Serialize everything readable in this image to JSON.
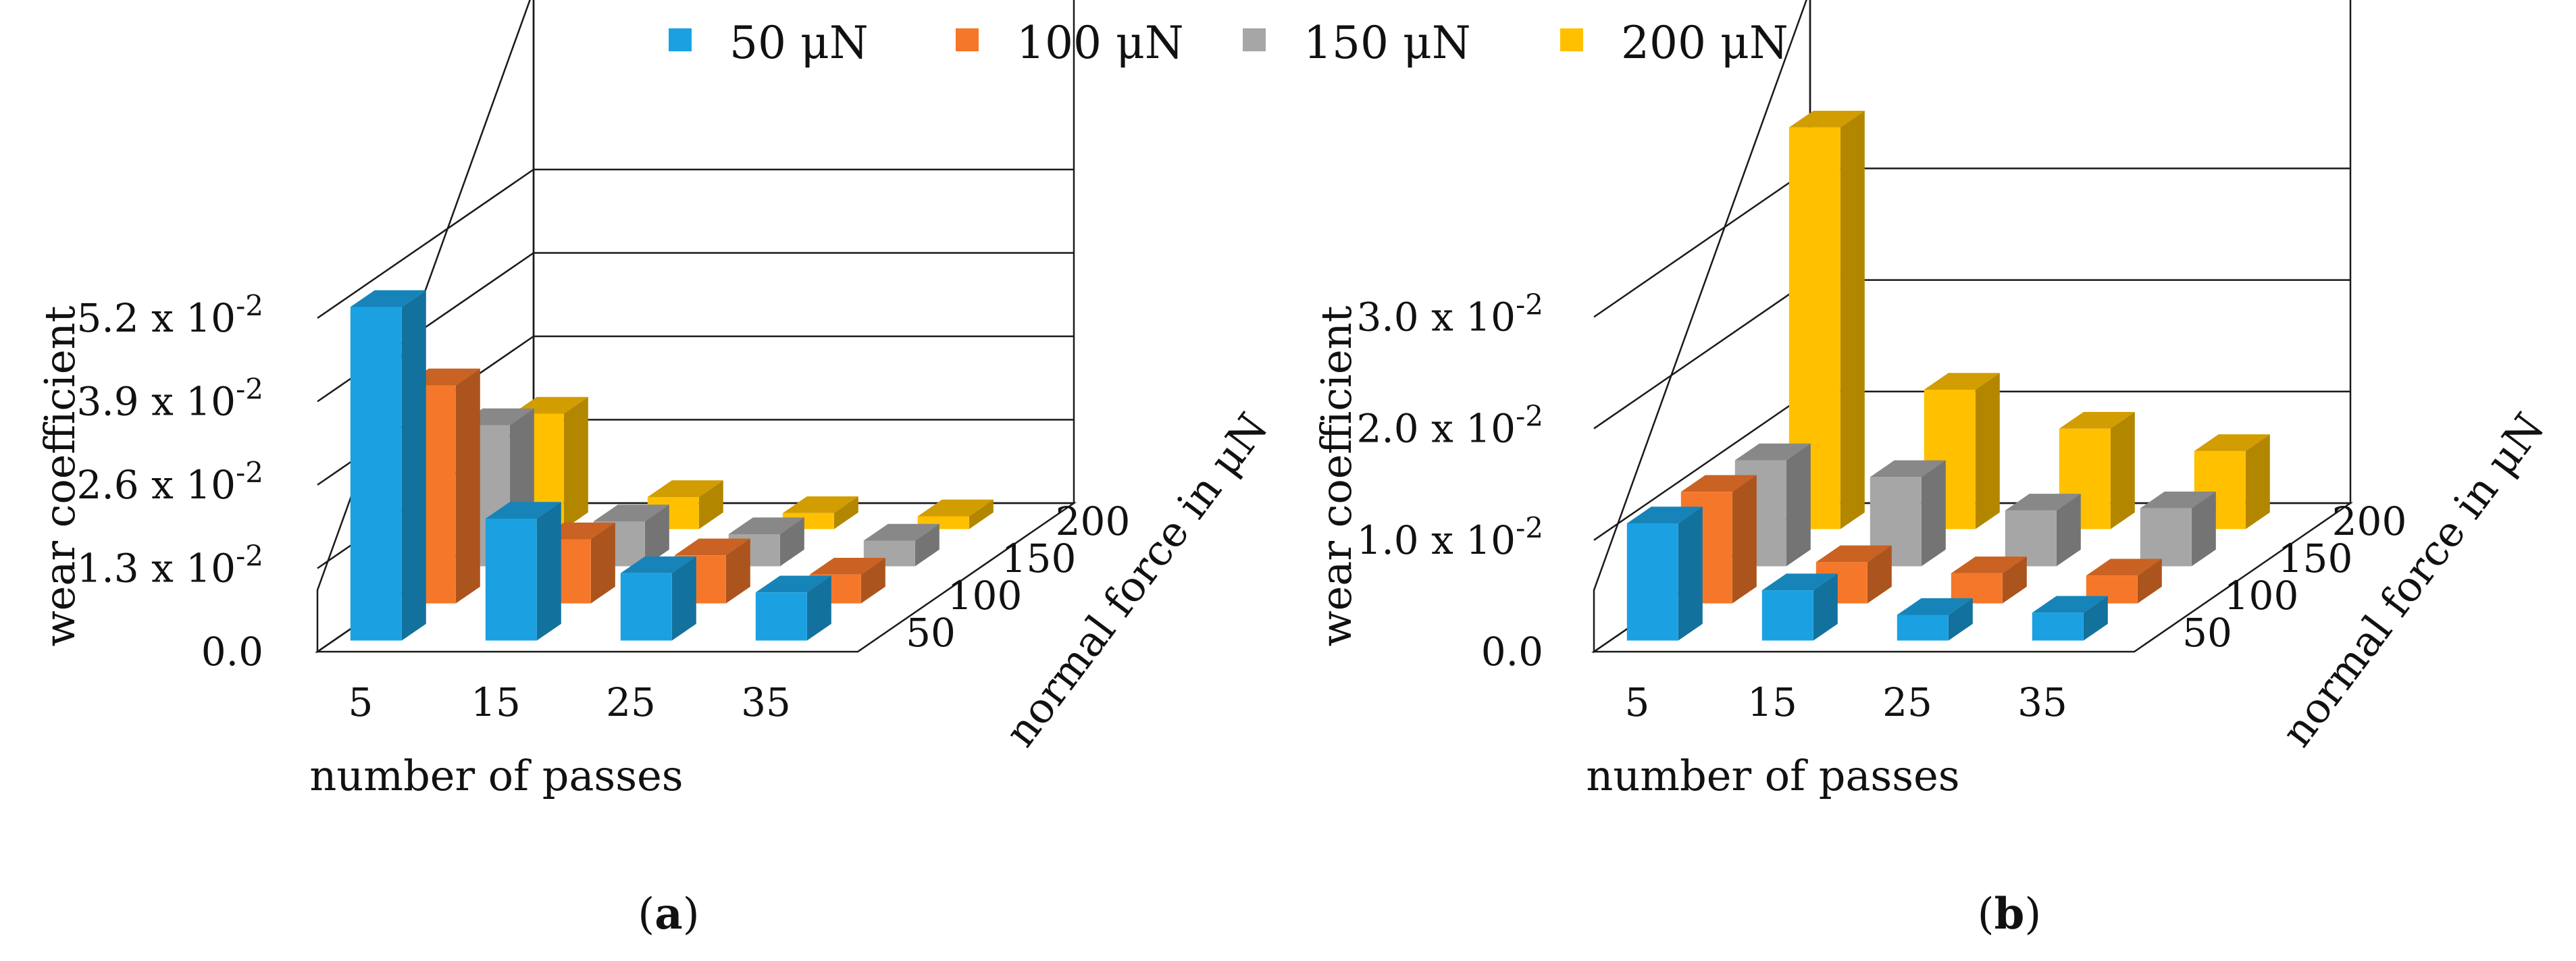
{
  "legend": {
    "items": [
      {
        "label": "50 μN",
        "color": "#1ba1e2"
      },
      {
        "label": "100 μN",
        "color": "#f5782a"
      },
      {
        "label": "150 μN",
        "color": "#a6a6a6"
      },
      {
        "label": "200 μN",
        "color": "#ffc000"
      }
    ]
  },
  "chart_data": [
    {
      "type": "bar3d",
      "panel_label": "(a)",
      "panel_letter": "a",
      "ylabel": "wear coefficient",
      "xlabel": "number of passes",
      "zlabel": "normal force in μN",
      "categories": [
        "5",
        "15",
        "25",
        "35"
      ],
      "depth_categories": [
        "50",
        "100",
        "150",
        "200"
      ],
      "yticks": [
        {
          "value": 0.0,
          "mantissa": "0.0",
          "exponent": ""
        },
        {
          "value": 0.013,
          "mantissa": "1.3 x 10",
          "exponent": "-2"
        },
        {
          "value": 0.026,
          "mantissa": "2.6 x 10",
          "exponent": "-2"
        },
        {
          "value": 0.039,
          "mantissa": "3.9 x 10",
          "exponent": "-2"
        },
        {
          "value": 0.052,
          "mantissa": "5.2 x 10",
          "exponent": "-2"
        }
      ],
      "ylim": [
        0,
        0.08
      ],
      "series": [
        {
          "name": "50 μN",
          "values": [
            0.052,
            0.019,
            0.0105,
            0.0075
          ]
        },
        {
          "name": "100 μN",
          "values": [
            0.034,
            0.01,
            0.0075,
            0.0045
          ]
        },
        {
          "name": "150 μN",
          "values": [
            0.022,
            0.007,
            0.005,
            0.004
          ]
        },
        {
          "name": "200 μN",
          "values": [
            0.018,
            0.005,
            0.0025,
            0.002
          ]
        }
      ]
    },
    {
      "type": "bar3d",
      "panel_label": "(b)",
      "panel_letter": "b",
      "ylabel": "wear coefficient",
      "xlabel": "number of passes",
      "zlabel": "normal force in μN",
      "categories": [
        "5",
        "15",
        "25",
        "35"
      ],
      "depth_categories": [
        "50",
        "100",
        "150",
        "200"
      ],
      "yticks": [
        {
          "value": 0.0,
          "mantissa": "0.0",
          "exponent": ""
        },
        {
          "value": 0.01,
          "mantissa": "1.0 x 10",
          "exponent": "-2"
        },
        {
          "value": 0.02,
          "mantissa": "2.0 x 10",
          "exponent": "-2"
        },
        {
          "value": 0.03,
          "mantissa": "3.0 x 10",
          "exponent": "-2"
        }
      ],
      "ylim": [
        0,
        0.046
      ],
      "series": [
        {
          "name": "50 μN",
          "values": [
            0.0105,
            0.0045,
            0.0023,
            0.0025
          ]
        },
        {
          "name": "100 μN",
          "values": [
            0.01,
            0.0037,
            0.0027,
            0.0025
          ]
        },
        {
          "name": "150 μN",
          "values": [
            0.0095,
            0.008,
            0.005,
            0.0052
          ]
        },
        {
          "name": "200 μN",
          "values": [
            0.036,
            0.0125,
            0.009,
            0.007
          ]
        }
      ]
    }
  ]
}
